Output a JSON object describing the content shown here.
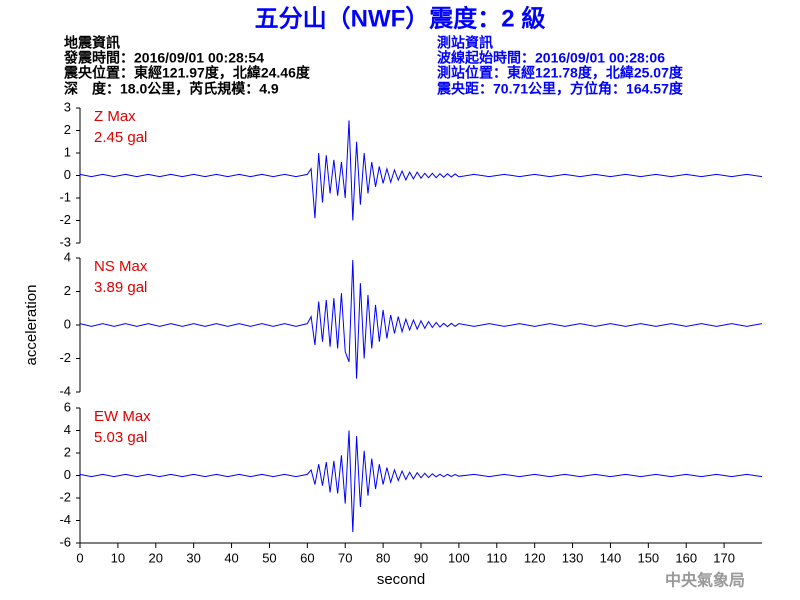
{
  "header": {
    "title": "五分山（NWF）震度：2 級",
    "left": [
      "地震資訊",
      "發震時間：2016/09/01 00:28:54",
      "震央位置：東經121.97度，北緯24.46度",
      "深　度：18.0公里，芮氏規模：4.9"
    ],
    "right": [
      "測站資訊",
      "波線起始時間：2016/09/01 00:28:06",
      "測站位置：東經121.78度，北緯25.07度",
      "震央距：70.71公里，方位角：164.57度"
    ]
  },
  "footer": "中央氣象局",
  "chart_data": [
    {
      "type": "line",
      "annotations": [
        "Z Max",
        "2.45 gal"
      ],
      "annotation_color": "#e00000",
      "color": "#0000ff",
      "ylim": [
        -3,
        3
      ],
      "yticks": [
        3,
        2,
        1,
        0,
        -1,
        -2,
        -3
      ],
      "xlim": [
        0,
        180
      ],
      "x": [
        0,
        3,
        6,
        9,
        12,
        15,
        18,
        21,
        24,
        27,
        30,
        33,
        36,
        39,
        42,
        45,
        48,
        51,
        54,
        57,
        60,
        61,
        62,
        63,
        64,
        65,
        66,
        67,
        68,
        69,
        70,
        71,
        72,
        73,
        74,
        75,
        76,
        77,
        78,
        79,
        80,
        81,
        82,
        83,
        84,
        85,
        86,
        87,
        88,
        89,
        90,
        91,
        92,
        93,
        94,
        95,
        96,
        97,
        98,
        99,
        100,
        104,
        108,
        112,
        116,
        120,
        124,
        128,
        132,
        136,
        140,
        144,
        148,
        152,
        156,
        160,
        164,
        168,
        172,
        176,
        180
      ],
      "values": [
        0.05,
        -0.05,
        0.05,
        -0.05,
        0.05,
        -0.05,
        0.05,
        -0.05,
        0.05,
        -0.05,
        0.05,
        -0.05,
        0.05,
        -0.05,
        0.05,
        -0.05,
        0.05,
        -0.05,
        0.05,
        -0.05,
        0.05,
        0.3,
        -1.9,
        1.0,
        -1.2,
        0.9,
        -0.8,
        0.7,
        -0.9,
        0.6,
        -1.0,
        2.45,
        -2.0,
        1.5,
        -1.3,
        1.0,
        -0.8,
        0.6,
        -0.5,
        0.4,
        -0.35,
        0.3,
        -0.3,
        0.25,
        -0.2,
        0.2,
        -0.2,
        0.15,
        -0.15,
        0.15,
        -0.12,
        0.1,
        -0.1,
        0.1,
        -0.1,
        0.08,
        -0.08,
        0.08,
        -0.07,
        0.07,
        -0.06,
        0.05,
        -0.05,
        0.05,
        -0.05,
        0.05,
        -0.05,
        0.05,
        -0.05,
        0.05,
        -0.05,
        0.05,
        -0.05,
        0.05,
        -0.05,
        0.05,
        -0.05,
        0.05,
        -0.05,
        0.05,
        -0.05
      ]
    },
    {
      "type": "line",
      "annotations": [
        "NS Max",
        "3.89 gal"
      ],
      "annotation_color": "#e00000",
      "color": "#0000ff",
      "ylabel": "acceleration",
      "ylim": [
        -4,
        4
      ],
      "yticks": [
        4,
        2,
        0,
        -2,
        -4
      ],
      "xlim": [
        0,
        180
      ],
      "x": [
        0,
        3,
        6,
        9,
        12,
        15,
        18,
        21,
        24,
        27,
        30,
        33,
        36,
        39,
        42,
        45,
        48,
        51,
        54,
        57,
        60,
        61,
        62,
        63,
        64,
        65,
        66,
        67,
        68,
        69,
        70,
        71,
        72,
        73,
        74,
        75,
        76,
        77,
        78,
        79,
        80,
        81,
        82,
        83,
        84,
        85,
        86,
        87,
        88,
        89,
        90,
        91,
        92,
        93,
        94,
        95,
        96,
        97,
        98,
        99,
        100,
        104,
        108,
        112,
        116,
        120,
        124,
        128,
        132,
        136,
        140,
        144,
        148,
        152,
        156,
        160,
        164,
        168,
        172,
        176,
        180
      ],
      "values": [
        0.08,
        -0.08,
        0.08,
        -0.08,
        0.08,
        -0.08,
        0.08,
        -0.08,
        0.08,
        -0.08,
        0.08,
        -0.08,
        0.08,
        -0.08,
        0.08,
        -0.08,
        0.08,
        -0.08,
        0.08,
        -0.08,
        0.08,
        0.5,
        -1.2,
        1.4,
        -1.0,
        1.5,
        -1.3,
        1.6,
        -1.4,
        1.9,
        -1.6,
        -2.2,
        3.89,
        -3.2,
        2.5,
        -2.0,
        1.8,
        -1.4,
        1.2,
        -1.0,
        0.9,
        -0.8,
        0.6,
        -0.5,
        0.5,
        -0.4,
        0.35,
        -0.3,
        0.3,
        -0.25,
        0.25,
        -0.2,
        0.2,
        -0.15,
        0.15,
        -0.12,
        0.1,
        -0.1,
        0.1,
        -0.08,
        0.08,
        -0.08,
        0.08,
        -0.08,
        0.08,
        -0.08,
        0.08,
        -0.08,
        0.08,
        -0.08,
        0.08,
        -0.08,
        0.08,
        -0.08,
        0.08,
        -0.08,
        0.08,
        -0.08,
        0.08,
        -0.08,
        0.08
      ]
    },
    {
      "type": "line",
      "annotations": [
        "EW Max",
        "5.03 gal"
      ],
      "annotation_color": "#e00000",
      "color": "#0000ff",
      "xlabel": "second",
      "ylim": [
        -6,
        6
      ],
      "yticks": [
        6,
        4,
        2,
        0,
        -2,
        -4,
        -6
      ],
      "xlim": [
        0,
        180
      ],
      "xticks": [
        0,
        10,
        20,
        30,
        40,
        50,
        60,
        70,
        80,
        90,
        100,
        110,
        120,
        130,
        140,
        150,
        160,
        170
      ],
      "x": [
        0,
        3,
        6,
        9,
        12,
        15,
        18,
        21,
        24,
        27,
        30,
        33,
        36,
        39,
        42,
        45,
        48,
        51,
        54,
        57,
        60,
        61,
        62,
        63,
        64,
        65,
        66,
        67,
        68,
        69,
        70,
        71,
        72,
        73,
        74,
        75,
        76,
        77,
        78,
        79,
        80,
        81,
        82,
        83,
        84,
        85,
        86,
        87,
        88,
        89,
        90,
        91,
        92,
        93,
        94,
        95,
        96,
        97,
        98,
        99,
        100,
        104,
        108,
        112,
        116,
        120,
        124,
        128,
        132,
        136,
        140,
        144,
        148,
        152,
        156,
        160,
        164,
        168,
        172,
        176,
        180
      ],
      "values": [
        0.1,
        -0.1,
        0.1,
        -0.1,
        0.1,
        -0.1,
        0.1,
        -0.1,
        0.1,
        -0.1,
        0.1,
        -0.1,
        0.1,
        -0.1,
        0.1,
        -0.1,
        0.1,
        -0.1,
        0.1,
        -0.1,
        0.1,
        0.5,
        -0.8,
        1.0,
        -0.9,
        1.2,
        -1.5,
        1.3,
        -1.6,
        1.8,
        -2.5,
        4.0,
        -5.03,
        3.5,
        -2.8,
        2.2,
        -1.8,
        1.5,
        -1.2,
        1.0,
        -0.8,
        0.7,
        -0.6,
        0.5,
        -0.45,
        0.4,
        -0.35,
        0.3,
        -0.3,
        0.25,
        -0.2,
        0.2,
        -0.18,
        0.15,
        -0.12,
        0.1,
        -0.1,
        0.1,
        -0.08,
        0.08,
        -0.06,
        0.1,
        -0.1,
        0.1,
        -0.1,
        0.1,
        -0.1,
        0.1,
        -0.1,
        0.1,
        -0.1,
        0.1,
        -0.1,
        0.1,
        -0.1,
        0.1,
        -0.1,
        0.1,
        -0.1,
        0.1,
        -0.1
      ]
    }
  ]
}
